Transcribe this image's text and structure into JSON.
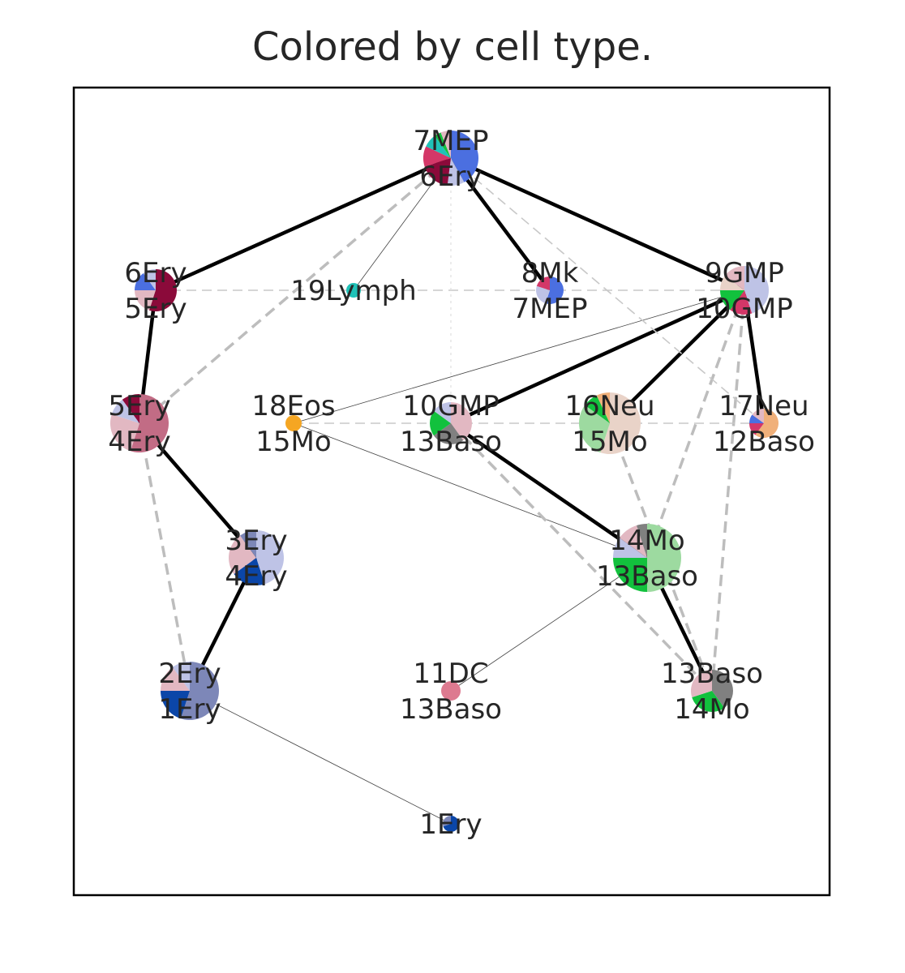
{
  "title": "Colored by cell type.",
  "colors": {
    "dark_red": "#8b0a3a",
    "crimson": "#d43768",
    "royal_blue": "#4b6fe0",
    "teal": "#20c2b8",
    "pink_light": "#e2b8c2",
    "lavender": "#bec3e6",
    "green": "#12c13d",
    "light_green": "#9ddaa0",
    "gray": "#808080",
    "peach": "#e9d3c8",
    "orange": "#f5a623",
    "navy": "#0b46a8",
    "slate": "#7d87b8",
    "mauve": "#c26c85",
    "salmon": "#f0b07a",
    "rose": "#dd7a90"
  },
  "nodes": [
    {
      "id": "n7mep",
      "label1": "7MEP",
      "label2": "6Ery",
      "slices": [
        [
          "royal_blue",
          0.42
        ],
        [
          "lavender",
          0.1
        ],
        [
          "dark_red",
          0.18
        ],
        [
          "crimson",
          0.12
        ],
        [
          "teal",
          0.08
        ],
        [
          "green",
          0.04
        ],
        [
          "pink_light",
          0.06
        ]
      ]
    },
    {
      "id": "n6ery",
      "label1": "6Ery",
      "label2": "5Ery",
      "slices": [
        [
          "dark_red",
          0.55
        ],
        [
          "pink_light",
          0.2
        ],
        [
          "royal_blue",
          0.15
        ],
        [
          "lavender",
          0.1
        ]
      ]
    },
    {
      "id": "n19",
      "label1": "19Lymph",
      "label2": "",
      "slices": [
        [
          "teal",
          1.0
        ]
      ]
    },
    {
      "id": "n8mk",
      "label1": "8Mk",
      "label2": "7MEP",
      "slices": [
        [
          "royal_blue",
          0.55
        ],
        [
          "lavender",
          0.25
        ],
        [
          "crimson",
          0.2
        ]
      ]
    },
    {
      "id": "n9gmp",
      "label1": "9GMP",
      "label2": "10GMP",
      "slices": [
        [
          "lavender",
          0.45
        ],
        [
          "crimson",
          0.15
        ],
        [
          "green",
          0.15
        ],
        [
          "peach",
          0.1
        ],
        [
          "pink_light",
          0.15
        ]
      ]
    },
    {
      "id": "n5ery",
      "label1": "5Ery",
      "label2": "4Ery",
      "slices": [
        [
          "mauve",
          0.55
        ],
        [
          "pink_light",
          0.25
        ],
        [
          "lavender",
          0.1
        ],
        [
          "dark_red",
          0.1
        ]
      ]
    },
    {
      "id": "n18",
      "label1": "18Eos",
      "label2": "15Mo",
      "slices": [
        [
          "orange",
          1.0
        ]
      ]
    },
    {
      "id": "n10gmp",
      "label1": "10GMP",
      "label2": "13Baso",
      "slices": [
        [
          "pink_light",
          0.4
        ],
        [
          "gray",
          0.25
        ],
        [
          "green",
          0.2
        ],
        [
          "lavender",
          0.15
        ]
      ]
    },
    {
      "id": "n16",
      "label1": "16Neu",
      "label2": "15Mo",
      "slices": [
        [
          "peach",
          0.55
        ],
        [
          "light_green",
          0.3
        ],
        [
          "green",
          0.08
        ],
        [
          "salmon",
          0.07
        ]
      ]
    },
    {
      "id": "n17",
      "label1": "17Neu",
      "label2": "12Baso",
      "slices": [
        [
          "salmon",
          0.6
        ],
        [
          "crimson",
          0.15
        ],
        [
          "royal_blue",
          0.1
        ],
        [
          "pink_light",
          0.15
        ]
      ]
    },
    {
      "id": "n3ery",
      "label1": "3Ery",
      "label2": "4Ery",
      "slices": [
        [
          "lavender",
          0.45
        ],
        [
          "navy",
          0.2
        ],
        [
          "pink_light",
          0.25
        ],
        [
          "slate",
          0.1
        ]
      ]
    },
    {
      "id": "n14mo",
      "label1": "14Mo",
      "label2": "13Baso",
      "slices": [
        [
          "light_green",
          0.5
        ],
        [
          "green",
          0.25
        ],
        [
          "lavender",
          0.1
        ],
        [
          "pink_light",
          0.1
        ],
        [
          "gray",
          0.05
        ]
      ]
    },
    {
      "id": "n2ery",
      "label1": "2Ery",
      "label2": "1Ery",
      "slices": [
        [
          "slate",
          0.55
        ],
        [
          "navy",
          0.2
        ],
        [
          "pink_light",
          0.15
        ],
        [
          "lavender",
          0.1
        ]
      ]
    },
    {
      "id": "n11dc",
      "label1": "11DC",
      "label2": "13Baso",
      "slices": [
        [
          "rose",
          1.0
        ]
      ]
    },
    {
      "id": "n13baso",
      "label1": "13Baso",
      "label2": "14Mo",
      "slices": [
        [
          "gray",
          0.4
        ],
        [
          "green",
          0.3
        ],
        [
          "pink_light",
          0.3
        ]
      ]
    },
    {
      "id": "n1ery",
      "label1": "1Ery",
      "label2": "",
      "slices": [
        [
          "navy",
          0.7
        ],
        [
          "slate",
          0.3
        ]
      ]
    }
  ],
  "edges": [
    {
      "from": "n7mep",
      "to": "n6ery",
      "style": "solid"
    },
    {
      "from": "n7mep",
      "to": "n9gmp",
      "style": "solid"
    },
    {
      "from": "n7mep",
      "to": "n8mk",
      "style": "solid"
    },
    {
      "from": "n6ery",
      "to": "n5ery",
      "style": "solid"
    },
    {
      "from": "n5ery",
      "to": "n3ery",
      "style": "solid"
    },
    {
      "from": "n3ery",
      "to": "n2ery",
      "style": "solid"
    },
    {
      "from": "n9gmp",
      "to": "n10gmp",
      "style": "solid"
    },
    {
      "from": "n9gmp",
      "to": "n16",
      "style": "solid"
    },
    {
      "from": "n9gmp",
      "to": "n17",
      "style": "solid"
    },
    {
      "from": "n10gmp",
      "to": "n14mo",
      "style": "solid"
    },
    {
      "from": "n14mo",
      "to": "n13baso",
      "style": "solid"
    },
    {
      "from": "n7mep",
      "to": "n19",
      "style": "thin"
    },
    {
      "from": "n9gmp",
      "to": "n18",
      "style": "thin"
    },
    {
      "from": "n18",
      "to": "n14mo",
      "style": "thin"
    },
    {
      "from": "n14mo",
      "to": "n11dc",
      "style": "thin"
    },
    {
      "from": "n2ery",
      "to": "n1ery",
      "style": "thin"
    },
    {
      "from": "n7mep",
      "to": "n5ery",
      "style": "dashed"
    },
    {
      "from": "n5ery",
      "to": "n2ery",
      "style": "dashed"
    },
    {
      "from": "n9gmp",
      "to": "n14mo",
      "style": "dashed"
    },
    {
      "from": "n9gmp",
      "to": "n13baso",
      "style": "dashed"
    },
    {
      "from": "n10gmp",
      "to": "n13baso",
      "style": "dashed"
    },
    {
      "from": "n16",
      "to": "n13baso",
      "style": "dashed"
    },
    {
      "from": "n6ery",
      "to": "n9gmp",
      "style": "faint"
    },
    {
      "from": "n18",
      "to": "n17",
      "style": "faint"
    },
    {
      "from": "n7mep",
      "to": "n17",
      "style": "faint"
    },
    {
      "from": "n7mep",
      "to": "n10gmp",
      "style": "dotted"
    }
  ]
}
